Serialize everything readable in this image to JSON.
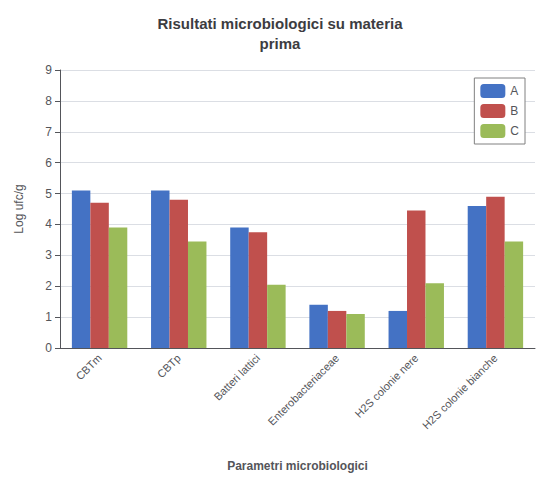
{
  "chart_data": {
    "type": "bar",
    "title": "Risultati microbiologici su materia\nprima",
    "xlabel": "Parametri microbiologici",
    "ylabel": "Log ufc/g",
    "categories": [
      "CBTm",
      "CBTp",
      "Batteri lattici",
      "Enterobacteriaceae",
      "H2S colonie nere",
      "H2S colonie bianche"
    ],
    "series": [
      {
        "name": "A",
        "color": "#4472C4",
        "values": [
          5.1,
          5.1,
          3.9,
          1.4,
          1.2,
          4.6
        ]
      },
      {
        "name": "B",
        "color": "#C0504D",
        "values": [
          4.7,
          4.8,
          3.75,
          1.2,
          4.45,
          4.9
        ]
      },
      {
        "name": "C",
        "color": "#9BBB59",
        "values": [
          3.9,
          3.45,
          2.05,
          1.1,
          2.1,
          3.45
        ]
      }
    ],
    "ylim": [
      0,
      9
    ],
    "yticks": [
      0,
      1,
      2,
      3,
      4,
      5,
      6,
      7,
      8,
      9
    ],
    "grid": true,
    "legend": "upper right"
  }
}
